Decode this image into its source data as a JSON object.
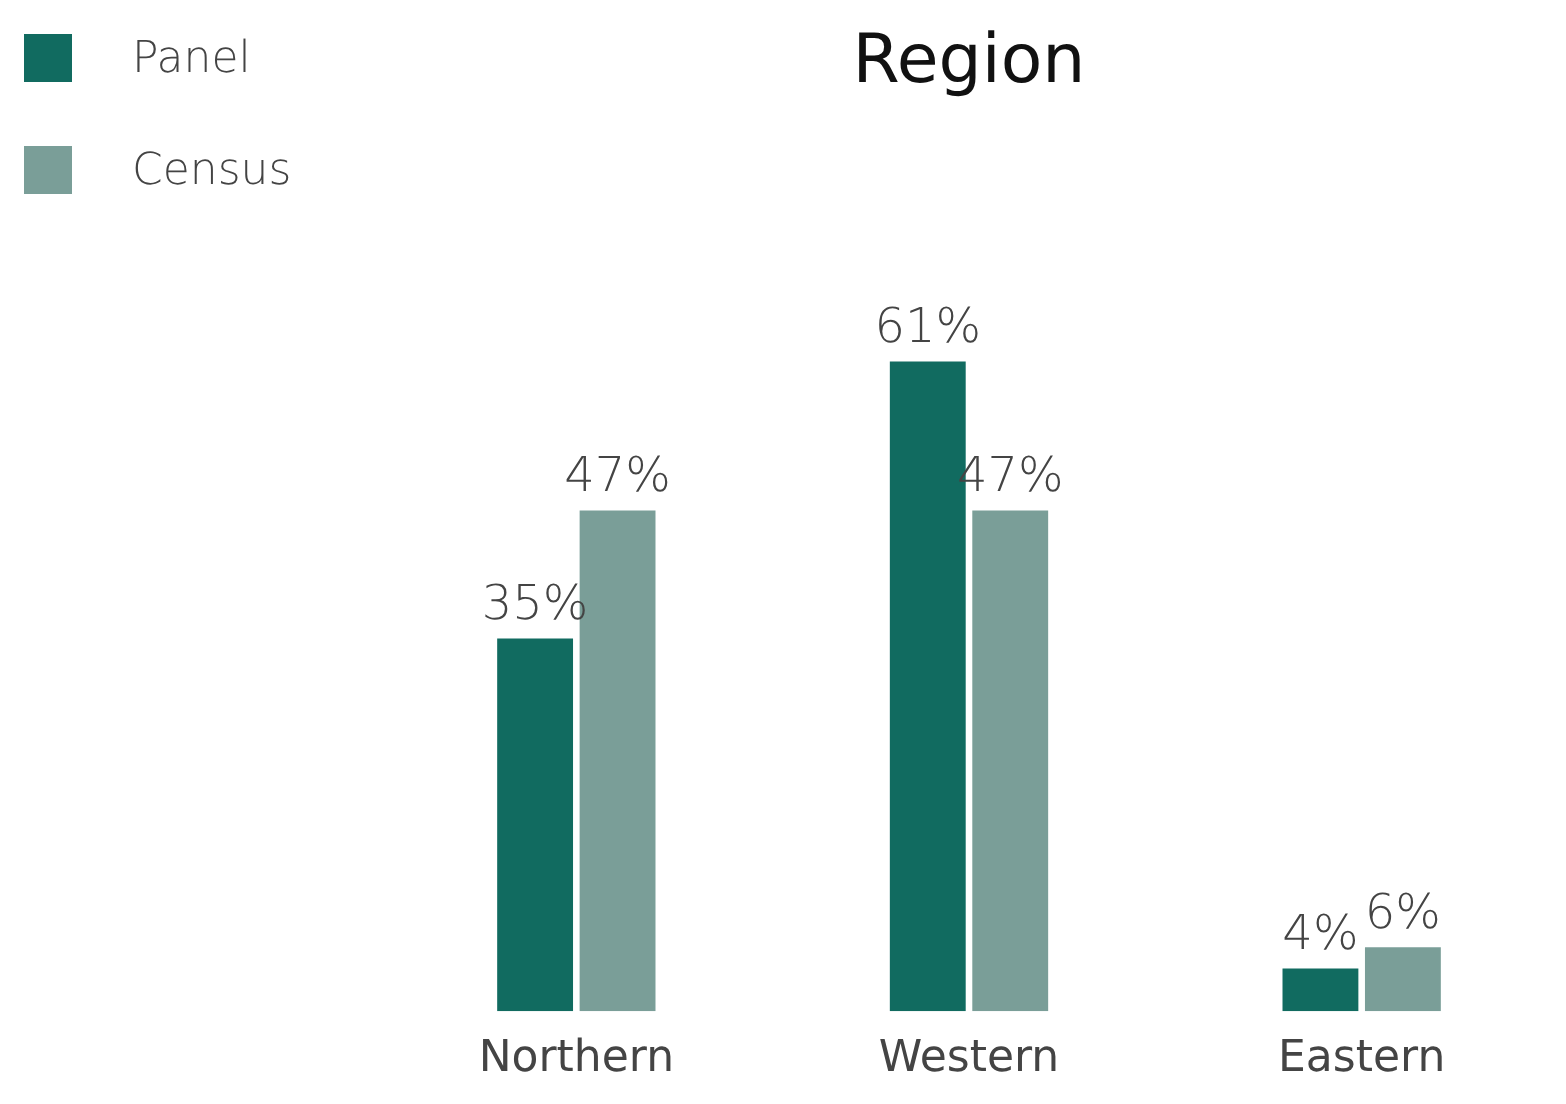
{
  "chart_data": {
    "type": "bar",
    "title": "Region",
    "categories": [
      "Northern",
      "Western",
      "Eastern"
    ],
    "series": [
      {
        "name": "Panel",
        "color": "#116b60",
        "values": [
          35,
          61,
          4
        ],
        "value_labels": [
          "35%",
          "61%",
          "4%"
        ]
      },
      {
        "name": "Census",
        "color": "#7a9e98",
        "values": [
          47,
          47,
          6
        ],
        "value_labels": [
          "47%",
          "47%",
          "6%"
        ]
      }
    ],
    "legend": "top left",
    "grid": false
  }
}
